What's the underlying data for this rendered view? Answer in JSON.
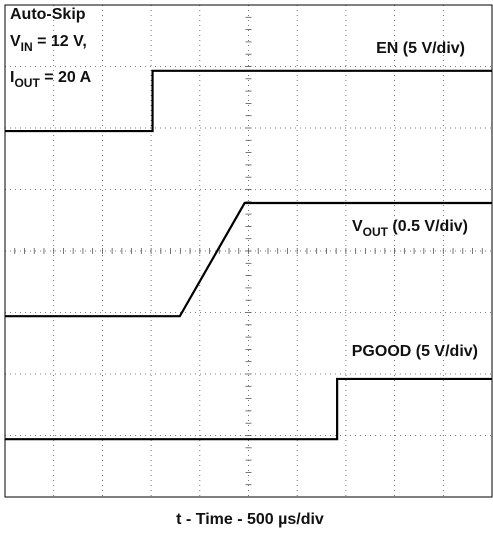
{
  "chart_data": {
    "type": "line",
    "xlabel": "t - Time - 500 µs/div",
    "xlim": [
      0,
      10
    ],
    "ylim": [
      0,
      8
    ],
    "grid_divisions": [
      10,
      8
    ],
    "annotation": [
      [
        {
          "text": "Auto-Skip"
        }
      ],
      [
        {
          "text": "V"
        },
        {
          "text": "IN",
          "sub": true
        },
        {
          "text": " = 12 V,"
        }
      ],
      [
        {
          "text": "I"
        },
        {
          "text": "OUT",
          "sub": true
        },
        {
          "text": " = 20 A"
        }
      ]
    ],
    "series": [
      {
        "label": [
          {
            "text": "EN (5 V/div)"
          }
        ],
        "color": "#000000",
        "x": [
          0,
          3.03,
          3.03,
          10
        ],
        "values": [
          5.95,
          5.95,
          6.93,
          6.93
        ]
      },
      {
        "label": [
          {
            "text": "V"
          },
          {
            "text": "OUT",
            "sub": true
          },
          {
            "text": " (0.5 V/div)"
          }
        ],
        "color": "#000000",
        "x": [
          0,
          3.59,
          4.92,
          10
        ],
        "values": [
          2.94,
          2.94,
          4.78,
          4.78
        ]
      },
      {
        "label": [
          {
            "text": "PGOOD (5 V/div)"
          }
        ],
        "color": "#000000",
        "x": [
          0,
          6.82,
          6.82,
          10
        ],
        "values": [
          0.94,
          0.94,
          1.92,
          1.92
        ]
      }
    ]
  }
}
